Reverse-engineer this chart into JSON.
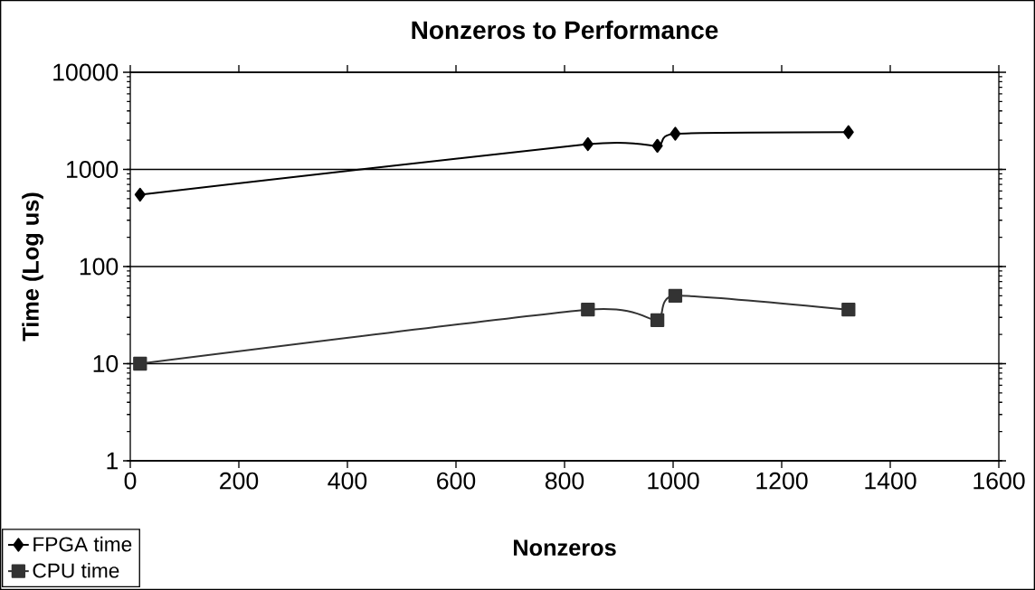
{
  "chart_data": {
    "type": "line",
    "title": "Nonzeros to Performance",
    "xlabel": "Nonzeros",
    "ylabel": "Time (Log us)",
    "series": [
      {
        "name": "FPGA time",
        "color": "#000000",
        "marker": "diamond",
        "x": [
          18,
          843,
          971,
          1004,
          1323
        ],
        "values": [
          550,
          1820,
          1750,
          2330,
          2420
        ]
      },
      {
        "name": "CPU time",
        "color": "#333333",
        "marker": "square",
        "x": [
          18,
          843,
          971,
          1004,
          1323
        ],
        "values": [
          10,
          36,
          28,
          50,
          36
        ]
      }
    ],
    "xlim": [
      0,
      1600
    ],
    "xticks": [
      0,
      200,
      400,
      600,
      800,
      1000,
      1200,
      1400,
      1600
    ],
    "ylim": [
      1,
      10000
    ],
    "yticks": [
      1,
      10,
      100,
      1000,
      10000
    ],
    "log": "y",
    "grid": "y",
    "legend": "bottom left",
    "line_style": "solid"
  }
}
